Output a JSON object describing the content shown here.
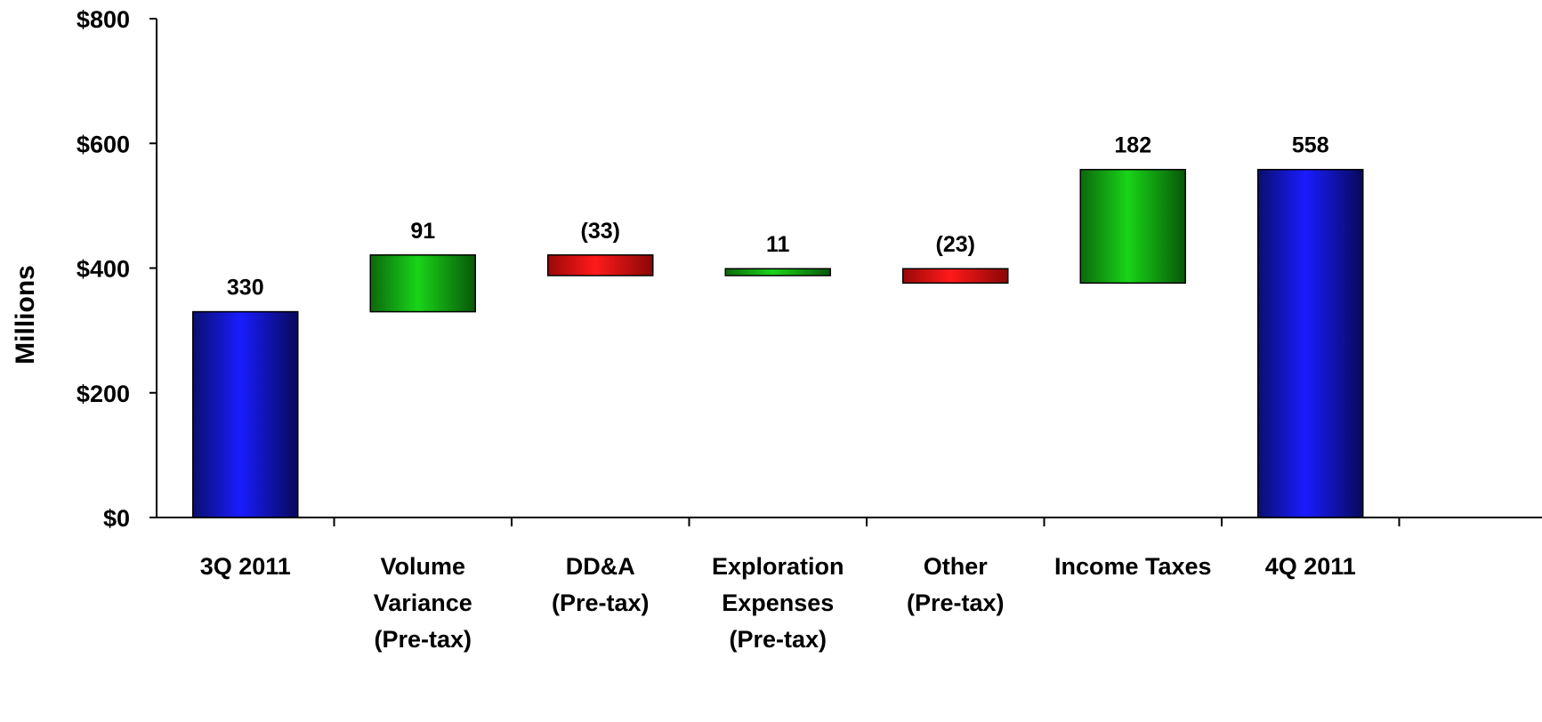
{
  "chart_data": {
    "type": "waterfall",
    "ylabel": "Millions",
    "ylim": [
      0,
      800
    ],
    "y_ticks": [
      {
        "value": 0,
        "label": "$0"
      },
      {
        "value": 200,
        "label": "$200"
      },
      {
        "value": 400,
        "label": "$400"
      },
      {
        "value": 600,
        "label": "$600"
      },
      {
        "value": 800,
        "label": "$800"
      }
    ],
    "grid": false,
    "legend": "none",
    "categories": [
      [
        "3Q 2011"
      ],
      [
        "Volume",
        "Variance",
        "(Pre-tax)"
      ],
      [
        "DD&A",
        "(Pre-tax)"
      ],
      [
        "Exploration",
        "Expenses",
        "(Pre-tax)"
      ],
      [
        "Other",
        "(Pre-tax)"
      ],
      [
        "Income Taxes"
      ],
      [
        "4Q 2011"
      ]
    ],
    "bars": [
      {
        "kind": "total",
        "start": 0,
        "end": 330,
        "label": "330"
      },
      {
        "kind": "increase",
        "start": 330,
        "end": 421,
        "label": "91"
      },
      {
        "kind": "decrease",
        "start": 421,
        "end": 388,
        "label": "(33)"
      },
      {
        "kind": "increase",
        "start": 388,
        "end": 399,
        "label": "11"
      },
      {
        "kind": "decrease",
        "start": 399,
        "end": 376,
        "label": "(23)"
      },
      {
        "kind": "increase",
        "start": 376,
        "end": 558,
        "label": "182"
      },
      {
        "kind": "total",
        "start": 0,
        "end": 558,
        "label": "558"
      }
    ],
    "colors": {
      "total": "#0a14e0",
      "increase": "#14b414",
      "decrease": "#e81212"
    }
  }
}
